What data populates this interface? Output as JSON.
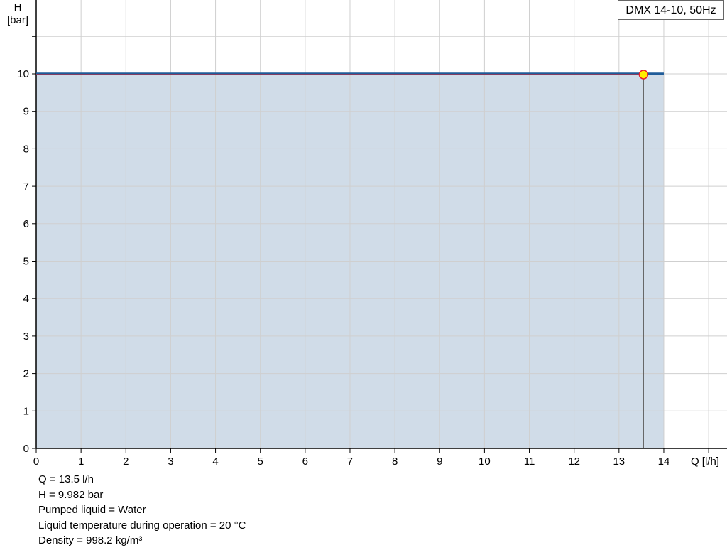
{
  "chart_data": {
    "type": "area",
    "title": "",
    "xlabel": "Q [l/h]",
    "ylabel_line1": "H",
    "ylabel_line2": "[bar]",
    "xlim": [
      0,
      15
    ],
    "ylim": [
      0,
      12
    ],
    "x_ticks": [
      0,
      1,
      2,
      3,
      4,
      5,
      6,
      7,
      8,
      9,
      10,
      11,
      12,
      13,
      14
    ],
    "y_ticks": [
      0,
      1,
      2,
      3,
      4,
      5,
      6,
      7,
      8,
      9,
      10
    ],
    "grid": true,
    "legend": {
      "label": "DMX 14-10, 50Hz",
      "placement": "top-right"
    },
    "series": [
      {
        "name": "DMX 14-10, 50Hz",
        "x": [
          0,
          14
        ],
        "y": [
          10,
          10
        ],
        "color": "#1f5c99",
        "fill": "#d0dce8"
      }
    ],
    "duty_line": {
      "x": [
        0,
        13.5
      ],
      "y": [
        9.982,
        9.982
      ],
      "color": "#e8202a"
    },
    "operating_point": {
      "q": 13.5,
      "h": 9.982,
      "fill": "#ffee00",
      "stroke": "#e8202a"
    }
  },
  "info": [
    "Q = 13.5 l/h",
    "H = 9.982 bar",
    "Pumped liquid = Water",
    "Liquid temperature during operation = 20 °C",
    "Density = 998.2 kg/m³"
  ]
}
